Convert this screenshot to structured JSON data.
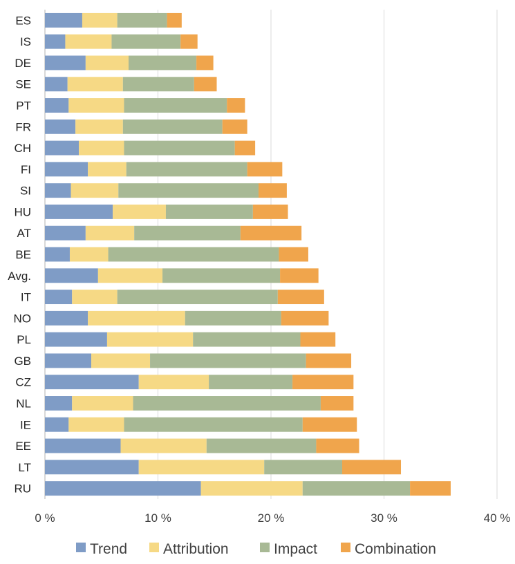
{
  "chart_data": {
    "type": "bar",
    "orientation": "horizontal",
    "stacked": true,
    "categories": [
      "ES",
      "IS",
      "DE",
      "SE",
      "PT",
      "FR",
      "CH",
      "FI",
      "SI",
      "HU",
      "AT",
      "BE",
      "Avg.",
      "IT",
      "NO",
      "PL",
      "GB",
      "CZ",
      "NL",
      "IE",
      "EE",
      "LT",
      "RU"
    ],
    "series": [
      {
        "name": "Trend",
        "color": "#7f9cc6",
        "values": [
          3.3,
          1.8,
          3.6,
          2.0,
          2.1,
          2.7,
          3.0,
          3.8,
          2.3,
          6.0,
          3.6,
          2.2,
          4.7,
          2.4,
          3.8,
          5.5,
          4.1,
          8.3,
          2.4,
          2.1,
          6.7,
          8.3,
          13.8
        ]
      },
      {
        "name": "Attribution",
        "color": "#f6d985",
        "values": [
          3.1,
          4.1,
          3.8,
          4.9,
          4.9,
          4.2,
          4.0,
          3.4,
          4.2,
          4.7,
          4.3,
          3.4,
          5.7,
          4.0,
          8.6,
          7.6,
          5.2,
          6.2,
          5.4,
          4.9,
          7.6,
          11.1,
          9.0
        ]
      },
      {
        "name": "Impact",
        "color": "#a8b995",
        "values": [
          4.4,
          6.1,
          6.0,
          6.3,
          9.1,
          8.8,
          9.8,
          10.7,
          12.4,
          7.7,
          9.4,
          15.1,
          10.4,
          14.2,
          8.5,
          9.5,
          13.8,
          7.4,
          16.6,
          15.8,
          9.7,
          6.9,
          9.5
        ]
      },
      {
        "name": "Combination",
        "color": "#f0a54c",
        "values": [
          1.3,
          1.5,
          1.5,
          2.0,
          1.6,
          2.2,
          1.8,
          3.1,
          2.5,
          3.1,
          5.4,
          2.6,
          3.4,
          4.1,
          4.2,
          3.1,
          4.0,
          5.4,
          2.9,
          4.8,
          3.8,
          5.2,
          3.6
        ]
      }
    ],
    "xlim": [
      0,
      40
    ],
    "x_ticks": [
      0,
      10,
      20,
      30,
      40
    ],
    "x_tick_labels": [
      "0 %",
      "10 %",
      "20 %",
      "30 %",
      "40 %"
    ],
    "grid": "vertical",
    "legend": "bottom",
    "title": "",
    "xlabel": "",
    "ylabel": ""
  }
}
